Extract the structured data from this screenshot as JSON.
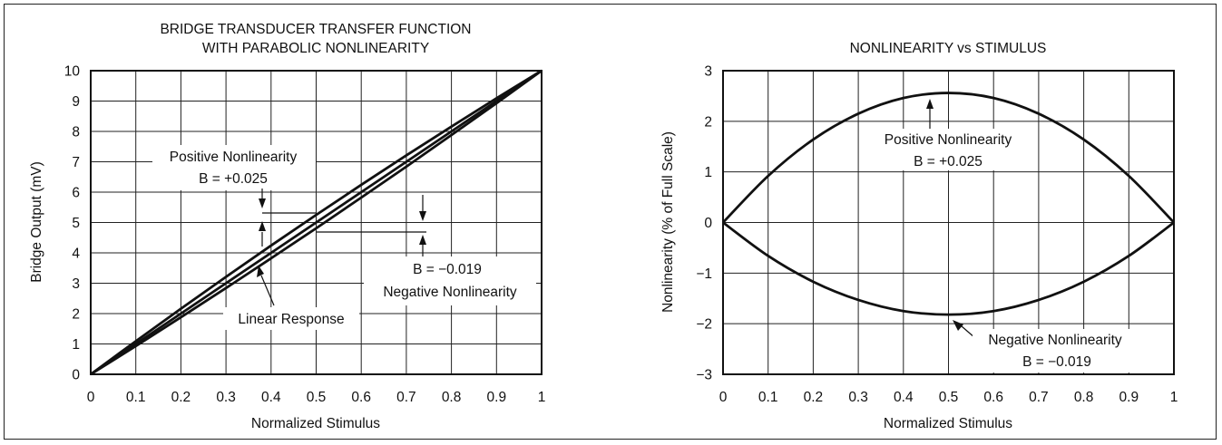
{
  "colors": {
    "line": "#111111",
    "grid": "#222222",
    "background": "#ffffff"
  },
  "chart_data": [
    {
      "type": "line",
      "title_line1": "BRIDGE TRANSDUCER TRANSFER FUNCTION",
      "title_line2": "WITH PARABOLIC NONLINEARITY",
      "xlabel": "Normalized Stimulus",
      "ylabel": "Bridge Output (mV)",
      "xlim": [
        0,
        1
      ],
      "ylim": [
        0,
        10
      ],
      "x_ticks": [
        "0",
        "0.1",
        "0.2",
        "0.3",
        "0.4",
        "0.5",
        "0.6",
        "0.7",
        "0.8",
        "0.9",
        "1"
      ],
      "y_ticks": [
        "0",
        "1",
        "2",
        "3",
        "4",
        "5",
        "6",
        "7",
        "8",
        "9",
        "10"
      ],
      "grid": true,
      "series": [
        {
          "x": [
            0,
            0.1,
            0.2,
            0.3,
            0.4,
            0.5,
            0.6,
            0.7,
            0.8,
            0.9,
            1
          ],
          "y": [
            0,
            1.09,
            2.16,
            3.21,
            4.24,
            5.25,
            6.24,
            7.21,
            8.16,
            9.09,
            10
          ]
        },
        {
          "x": [
            0,
            0.1,
            0.2,
            0.3,
            0.4,
            0.5,
            0.6,
            0.7,
            0.8,
            0.9,
            1
          ],
          "y": [
            0,
            1,
            2,
            3,
            4,
            5,
            6,
            7,
            8,
            9,
            10
          ]
        },
        {
          "x": [
            0,
            0.1,
            0.2,
            0.3,
            0.4,
            0.5,
            0.6,
            0.7,
            0.8,
            0.9,
            1
          ],
          "y": [
            0,
            0.93,
            1.88,
            2.84,
            3.82,
            4.81,
            5.82,
            6.84,
            7.88,
            8.93,
            10
          ]
        }
      ],
      "annotations": {
        "positive_label": "Positive Nonlinearity",
        "positive_value": "B = +0.025",
        "negative_value": "B = −0.019",
        "negative_label": "Negative Nonlinearity",
        "linear_label": "Linear Response"
      }
    },
    {
      "type": "line",
      "title": "NONLINEARITY vs STIMULUS",
      "xlabel": "Normalized Stimulus",
      "ylabel": "Nonlinearity (% of Full Scale)",
      "xlim": [
        0,
        1
      ],
      "ylim": [
        -3,
        3
      ],
      "x_ticks": [
        "0",
        "0.1",
        "0.2",
        "0.3",
        "0.4",
        "0.5",
        "0.6",
        "0.7",
        "0.8",
        "0.9",
        "1"
      ],
      "y_ticks": [
        "3",
        "2",
        "1",
        "0",
        "−1",
        "−2",
        "−3"
      ],
      "grid": true,
      "series": [
        {
          "x": [
            0,
            0.1,
            0.2,
            0.3,
            0.4,
            0.5,
            0.6,
            0.7,
            0.8,
            0.9,
            1
          ],
          "y": [
            0,
            0.92,
            1.64,
            2.15,
            2.46,
            2.56,
            2.46,
            2.15,
            1.64,
            0.92,
            0
          ]
        },
        {
          "x": [
            0,
            0.1,
            0.2,
            0.3,
            0.4,
            0.5,
            0.6,
            0.7,
            0.8,
            0.9,
            1
          ],
          "y": [
            0,
            -0.66,
            -1.17,
            -1.53,
            -1.75,
            -1.82,
            -1.75,
            -1.53,
            -1.17,
            -0.66,
            0
          ]
        }
      ],
      "annotations": {
        "positive_label": "Positive Nonlinearity",
        "positive_value": "B = +0.025",
        "negative_label": "Negative Nonlinearity",
        "negative_value": "B = −0.019"
      }
    }
  ]
}
